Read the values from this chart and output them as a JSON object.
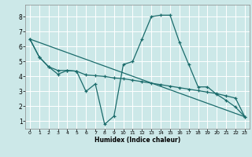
{
  "xlabel": "Humidex (Indice chaleur)",
  "background_color": "#cce8e8",
  "grid_color": "#ffffff",
  "line_color": "#1a6b6b",
  "xlim": [
    -0.5,
    23.5
  ],
  "ylim": [
    0.5,
    8.8
  ],
  "xticks": [
    0,
    1,
    2,
    3,
    4,
    5,
    6,
    7,
    8,
    9,
    10,
    11,
    12,
    13,
    14,
    15,
    16,
    17,
    18,
    19,
    20,
    21,
    22,
    23
  ],
  "yticks": [
    1,
    2,
    3,
    4,
    5,
    6,
    7,
    8
  ],
  "line1_x": [
    0,
    1,
    2,
    3,
    4,
    5,
    6,
    7,
    8,
    9,
    10,
    11,
    12,
    13,
    14,
    15,
    16,
    17,
    18,
    19,
    20,
    21,
    22,
    23
  ],
  "line1_y": [
    6.5,
    5.3,
    4.65,
    4.15,
    4.4,
    4.35,
    3.0,
    3.5,
    0.8,
    1.35,
    4.8,
    5.0,
    6.5,
    8.0,
    8.1,
    8.1,
    6.3,
    4.8,
    3.3,
    3.3,
    2.8,
    2.4,
    1.95,
    1.3
  ],
  "line2_x": [
    0,
    1,
    2,
    3,
    4,
    5,
    6,
    7,
    8,
    9,
    10,
    11,
    12,
    13,
    14,
    15,
    16,
    17,
    18,
    19,
    20,
    21,
    22,
    23
  ],
  "line2_y": [
    6.5,
    5.3,
    4.65,
    4.4,
    4.4,
    4.35,
    4.1,
    4.05,
    4.0,
    3.9,
    3.85,
    3.75,
    3.65,
    3.55,
    3.45,
    3.35,
    3.25,
    3.15,
    3.05,
    2.95,
    2.85,
    2.7,
    2.55,
    1.3
  ],
  "line3_x": [
    0,
    23
  ],
  "line3_y": [
    6.5,
    1.3
  ]
}
